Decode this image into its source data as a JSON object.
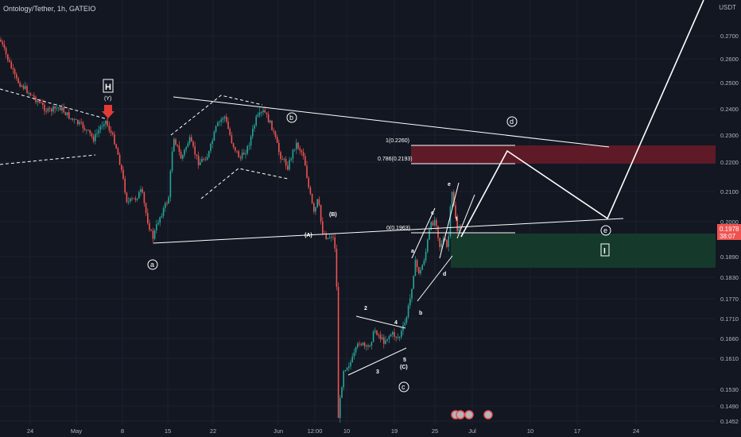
{
  "header": {
    "symbol_title": "Ontology/Tether, 1h, GATEIO",
    "currency": "USDT"
  },
  "price_axis": {
    "ticks": [
      "0.2700",
      "0.2600",
      "0.2500",
      "0.2400",
      "0.2300",
      "0.2200",
      "0.2100",
      "0.2000",
      "0.1890",
      "0.1830",
      "0.1770",
      "0.1710",
      "0.1660",
      "0.1610",
      "0.1530",
      "0.1490",
      "0.1452"
    ],
    "current_price": "0.1978",
    "countdown": "38:07"
  },
  "time_axis": {
    "ticks": [
      "24",
      "May",
      "8",
      "15",
      "22",
      "Jun",
      "12:00",
      "10",
      "19",
      "25",
      "Jul",
      "10",
      "17",
      "24"
    ]
  },
  "annotations": {
    "wave_labels": [
      "a",
      "b",
      "c",
      "d",
      "e",
      "I"
    ],
    "minor_labels": [
      "a",
      "b",
      "c",
      "d",
      "e",
      "f",
      "2",
      "3",
      "4",
      "5",
      "(C)",
      "(A)",
      "(B)",
      "(Y)"
    ],
    "H_box": "H",
    "fib_levels": [
      "1(0.2260)",
      "0.786(0.2193)",
      "0(0.1963)"
    ]
  },
  "colors": {
    "background": "#131722",
    "bull": "#26a69a",
    "bear": "#ef5350",
    "grid": "#1c2030",
    "resistance_zone": "#5e1a27",
    "support_zone": "#153a2b",
    "price_tag": "#ef5350",
    "arrow": "#e23b36"
  }
}
